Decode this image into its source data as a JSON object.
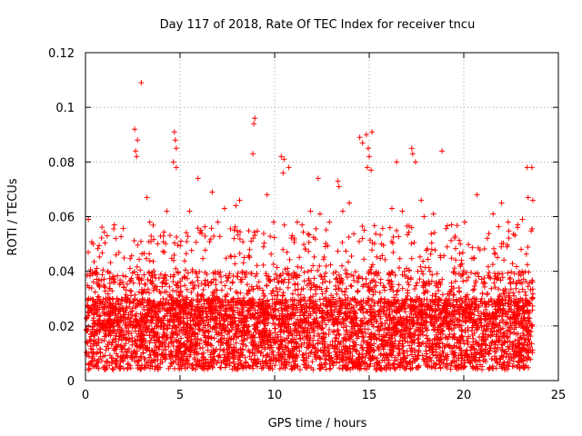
{
  "chart_data": {
    "type": "scatter",
    "title": "Day 117 of 2018, Rate Of TEC Index for receiver tncu",
    "xlabel": "GPS time / hours",
    "ylabel": "ROTI / TECUs",
    "xlim": [
      0,
      25
    ],
    "ylim": [
      0,
      0.12
    ],
    "xticks": [
      0,
      5,
      10,
      15,
      20,
      25
    ],
    "xtick_labels": [
      "0",
      "5",
      "10",
      "15",
      "20",
      "25"
    ],
    "yticks": [
      0,
      0.02,
      0.04,
      0.06,
      0.08,
      0.1,
      0.12
    ],
    "ytick_labels": [
      "0",
      "0.02",
      "0.04",
      "0.06",
      "0.08",
      "0.1",
      "0.12"
    ],
    "grid": true,
    "marker": "+",
    "color": "#ff0000",
    "series": [
      {
        "name": "ROTI",
        "points": [
          [
            2.95,
            0.109
          ],
          [
            8.95,
            0.096
          ],
          [
            8.9,
            0.094
          ],
          [
            8.85,
            0.083
          ],
          [
            2.6,
            0.092
          ],
          [
            2.75,
            0.088
          ],
          [
            2.65,
            0.084
          ],
          [
            2.7,
            0.082
          ],
          [
            4.7,
            0.091
          ],
          [
            4.75,
            0.088
          ],
          [
            4.8,
            0.085
          ],
          [
            4.65,
            0.08
          ],
          [
            4.8,
            0.078
          ],
          [
            5.95,
            0.074
          ],
          [
            6.7,
            0.069
          ],
          [
            8.15,
            0.066
          ],
          [
            9.6,
            0.068
          ],
          [
            10.35,
            0.082
          ],
          [
            10.5,
            0.081
          ],
          [
            10.75,
            0.078
          ],
          [
            10.45,
            0.076
          ],
          [
            12.3,
            0.074
          ],
          [
            13.35,
            0.073
          ],
          [
            13.4,
            0.071
          ],
          [
            13.6,
            0.062
          ],
          [
            14.5,
            0.089
          ],
          [
            14.65,
            0.087
          ],
          [
            14.85,
            0.09
          ],
          [
            15.15,
            0.091
          ],
          [
            14.95,
            0.085
          ],
          [
            15.0,
            0.082
          ],
          [
            14.9,
            0.078
          ],
          [
            15.1,
            0.077
          ],
          [
            16.45,
            0.08
          ],
          [
            17.25,
            0.085
          ],
          [
            17.3,
            0.083
          ],
          [
            17.45,
            0.08
          ],
          [
            17.75,
            0.066
          ],
          [
            18.85,
            0.084
          ],
          [
            20.7,
            0.068
          ],
          [
            22.0,
            0.065
          ],
          [
            23.35,
            0.078
          ],
          [
            23.6,
            0.078
          ],
          [
            23.4,
            0.067
          ],
          [
            23.65,
            0.066
          ],
          [
            0.15,
            0.059
          ],
          [
            0.4,
            0.05
          ],
          [
            1.6,
            0.052
          ],
          [
            3.25,
            0.067
          ],
          [
            3.4,
            0.058
          ],
          [
            4.3,
            0.062
          ],
          [
            5.5,
            0.062
          ],
          [
            6.1,
            0.055
          ],
          [
            7.0,
            0.058
          ],
          [
            7.35,
            0.063
          ],
          [
            7.95,
            0.064
          ],
          [
            9.95,
            0.058
          ],
          [
            11.2,
            0.058
          ],
          [
            11.9,
            0.062
          ],
          [
            12.4,
            0.061
          ],
          [
            12.9,
            0.058
          ],
          [
            13.95,
            0.065
          ],
          [
            16.2,
            0.063
          ],
          [
            16.75,
            0.062
          ],
          [
            17.9,
            0.06
          ],
          [
            18.4,
            0.061
          ],
          [
            19.35,
            0.057
          ],
          [
            20.05,
            0.058
          ],
          [
            21.55,
            0.061
          ],
          [
            22.35,
            0.058
          ],
          [
            22.85,
            0.057
          ],
          [
            23.1,
            0.059
          ]
        ]
      }
    ]
  }
}
